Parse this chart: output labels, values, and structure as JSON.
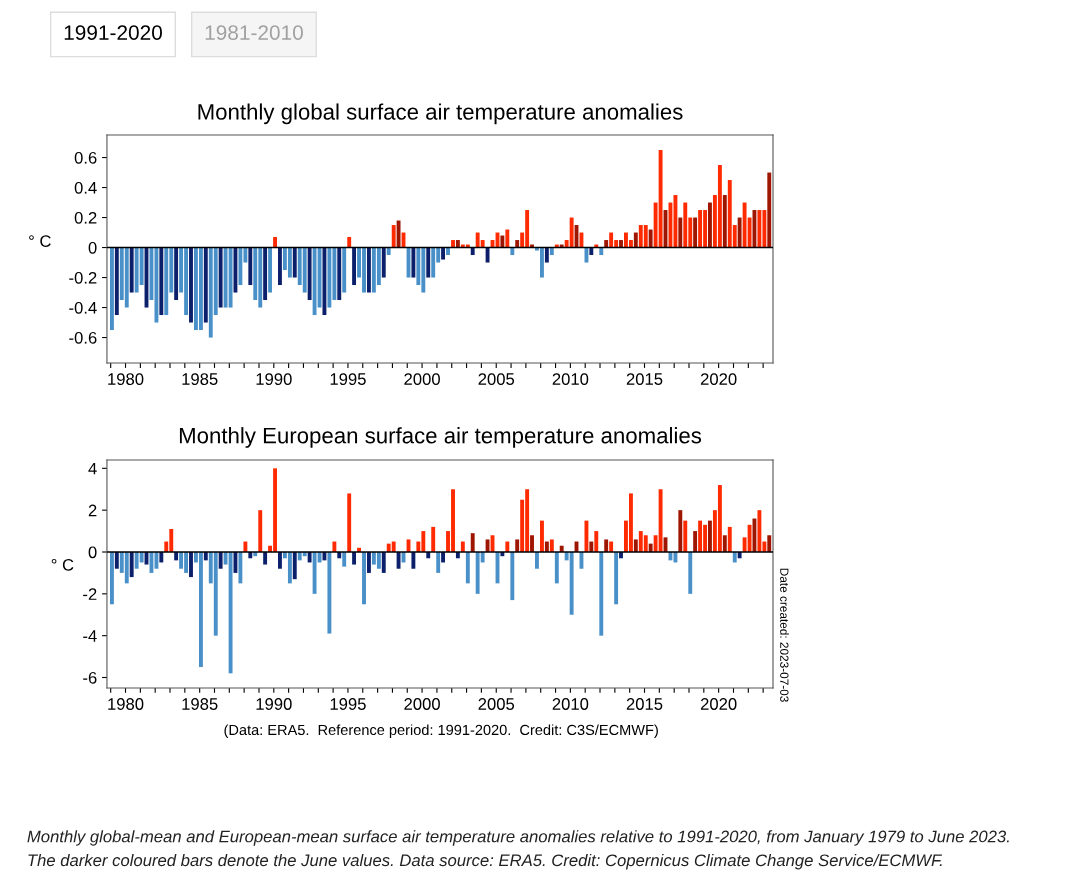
{
  "chart_data": [
    {
      "type": "bar",
      "title": "Monthly global surface air temperature anomalies",
      "ylabel": "° C",
      "annotations": [
        "1991-2020",
        "1981-2010"
      ],
      "x": [
        "1979-02",
        "1979-06",
        "1979-10",
        "1980-02",
        "1980-06",
        "1980-10",
        "1981-02",
        "1981-06",
        "1981-10",
        "1982-02",
        "1982-06",
        "1982-10",
        "1983-02",
        "1983-06",
        "1983-10",
        "1984-02",
        "1984-06",
        "1984-10",
        "1985-02",
        "1985-06",
        "1985-10",
        "1986-02",
        "1986-06",
        "1986-10",
        "1987-02",
        "1987-06",
        "1987-10",
        "1988-02",
        "1988-06",
        "1988-10",
        "1989-02",
        "1989-06",
        "1989-10",
        "1990-02",
        "1990-06",
        "1990-10",
        "1991-02",
        "1991-06",
        "1991-10",
        "1992-02",
        "1992-06",
        "1992-10",
        "1993-02",
        "1993-06",
        "1993-10",
        "1994-02",
        "1994-06",
        "1994-10",
        "1995-02",
        "1995-06",
        "1995-10",
        "1996-02",
        "1996-06",
        "1996-10",
        "1997-02",
        "1997-06",
        "1997-10",
        "1998-02",
        "1998-06",
        "1998-10",
        "1999-02",
        "1999-06",
        "1999-10",
        "2000-02",
        "2000-06",
        "2000-10",
        "2001-02",
        "2001-06",
        "2001-10",
        "2002-02",
        "2002-06",
        "2002-10",
        "2003-02",
        "2003-06",
        "2003-10",
        "2004-02",
        "2004-06",
        "2004-10",
        "2005-02",
        "2005-06",
        "2005-10",
        "2006-02",
        "2006-06",
        "2006-10",
        "2007-02",
        "2007-06",
        "2007-10",
        "2008-02",
        "2008-06",
        "2008-10",
        "2009-02",
        "2009-06",
        "2009-10",
        "2010-02",
        "2010-06",
        "2010-10",
        "2011-02",
        "2011-06",
        "2011-10",
        "2012-02",
        "2012-06",
        "2012-10",
        "2013-02",
        "2013-06",
        "2013-10",
        "2014-02",
        "2014-06",
        "2014-10",
        "2015-02",
        "2015-06",
        "2015-10",
        "2016-02",
        "2016-06",
        "2016-10",
        "2017-02",
        "2017-06",
        "2017-10",
        "2018-02",
        "2018-06",
        "2018-10",
        "2019-02",
        "2019-06",
        "2019-10",
        "2020-02",
        "2020-06",
        "2020-10",
        "2021-02",
        "2021-06",
        "2021-10",
        "2022-02",
        "2022-06",
        "2022-10",
        "2023-02",
        "2023-06"
      ],
      "values": [
        -0.55,
        -0.45,
        -0.35,
        -0.4,
        -0.3,
        -0.3,
        -0.25,
        -0.4,
        -0.35,
        -0.5,
        -0.45,
        -0.45,
        -0.3,
        -0.35,
        -0.3,
        -0.45,
        -0.5,
        -0.55,
        -0.55,
        -0.5,
        -0.6,
        -0.45,
        -0.4,
        -0.4,
        -0.4,
        -0.3,
        -0.25,
        -0.1,
        -0.25,
        -0.35,
        -0.4,
        -0.35,
        -0.3,
        0.07,
        -0.25,
        -0.15,
        -0.2,
        -0.2,
        -0.25,
        -0.3,
        -0.35,
        -0.45,
        -0.4,
        -0.45,
        -0.4,
        -0.35,
        -0.35,
        -0.3,
        0.07,
        -0.25,
        -0.2,
        -0.3,
        -0.3,
        -0.3,
        -0.25,
        -0.2,
        -0.05,
        0.15,
        0.18,
        0.1,
        -0.2,
        -0.2,
        -0.25,
        -0.3,
        -0.2,
        -0.2,
        -0.1,
        -0.08,
        -0.05,
        0.05,
        0.05,
        0.02,
        0.02,
        -0.05,
        0.1,
        0.05,
        -0.1,
        0.05,
        0.1,
        0.08,
        0.12,
        -0.05,
        0.05,
        0.1,
        0.25,
        0.02,
        -0.02,
        -0.2,
        -0.1,
        -0.05,
        0.02,
        0.02,
        0.05,
        0.2,
        0.15,
        0.1,
        -0.1,
        -0.05,
        0.02,
        -0.05,
        0.05,
        0.1,
        0.05,
        0.05,
        0.1,
        0.05,
        0.1,
        0.15,
        0.15,
        0.12,
        0.3,
        0.65,
        0.25,
        0.3,
        0.35,
        0.2,
        0.3,
        0.2,
        0.2,
        0.25,
        0.25,
        0.3,
        0.35,
        0.55,
        0.35,
        0.45,
        0.15,
        0.2,
        0.3,
        0.2,
        0.25,
        0.25,
        0.25,
        0.5
      ],
      "colors": [
        "#4a90c8",
        "#0b1f6b",
        "#4a90c8",
        "#4a90c8",
        "#0b1f6b",
        "#4a90c8",
        "#4a90c8",
        "#0b1f6b",
        "#4a90c8",
        "#4a90c8",
        "#0b1f6b",
        "#4a90c8",
        "#4a90c8",
        "#0b1f6b",
        "#4a90c8",
        "#4a90c8",
        "#0b1f6b",
        "#4a90c8",
        "#4a90c8",
        "#0b1f6b",
        "#4a90c8",
        "#4a90c8",
        "#0b1f6b",
        "#4a90c8",
        "#4a90c8",
        "#0b1f6b",
        "#4a90c8",
        "#4a90c8",
        "#0b1f6b",
        "#4a90c8",
        "#4a90c8",
        "#0b1f6b",
        "#4a90c8",
        "#ff2a00",
        "#0b1f6b",
        "#4a90c8",
        "#4a90c8",
        "#0b1f6b",
        "#4a90c8",
        "#4a90c8",
        "#0b1f6b",
        "#4a90c8",
        "#4a90c8",
        "#0b1f6b",
        "#4a90c8",
        "#4a90c8",
        "#0b1f6b",
        "#4a90c8",
        "#ff2a00",
        "#0b1f6b",
        "#4a90c8",
        "#4a90c8",
        "#0b1f6b",
        "#4a90c8",
        "#4a90c8",
        "#0b1f6b",
        "#4a90c8",
        "#ff2a00",
        "#9e1500",
        "#ff2a00",
        "#4a90c8",
        "#0b1f6b",
        "#4a90c8",
        "#4a90c8",
        "#0b1f6b",
        "#4a90c8",
        "#4a90c8",
        "#0b1f6b",
        "#4a90c8",
        "#ff2a00",
        "#9e1500",
        "#ff2a00",
        "#ff2a00",
        "#0b1f6b",
        "#ff2a00",
        "#ff2a00",
        "#0b1f6b",
        "#ff2a00",
        "#ff2a00",
        "#9e1500",
        "#ff2a00",
        "#4a90c8",
        "#9e1500",
        "#ff2a00",
        "#ff2a00",
        "#9e1500",
        "#4a90c8",
        "#4a90c8",
        "#0b1f6b",
        "#4a90c8",
        "#ff2a00",
        "#9e1500",
        "#ff2a00",
        "#ff2a00",
        "#9e1500",
        "#ff2a00",
        "#4a90c8",
        "#0b1f6b",
        "#ff2a00",
        "#4a90c8",
        "#9e1500",
        "#ff2a00",
        "#ff2a00",
        "#9e1500",
        "#ff2a00",
        "#ff2a00",
        "#9e1500",
        "#ff2a00",
        "#ff2a00",
        "#9e1500",
        "#ff2a00",
        "#ff2a00",
        "#9e1500",
        "#ff2a00",
        "#ff2a00",
        "#9e1500",
        "#ff2a00",
        "#ff2a00",
        "#9e1500",
        "#ff2a00",
        "#ff2a00",
        "#9e1500",
        "#ff2a00",
        "#ff2a00",
        "#9e1500",
        "#ff2a00",
        "#ff2a00",
        "#9e1500",
        "#ff2a00",
        "#ff2a00",
        "#9e1500",
        "#ff2a00",
        "#ff2a00",
        "#9e1500"
      ],
      "xlim": [
        "1978-10",
        "2023-09"
      ],
      "xticks": [
        {
          "value": "1979",
          "label": null
        },
        {
          "value": "1980",
          "label": "1980"
        },
        {
          "value": "1981",
          "label": null
        },
        {
          "value": "1982",
          "label": null
        },
        {
          "value": "1983",
          "label": null
        },
        {
          "value": "1984",
          "label": null
        },
        {
          "value": "1985",
          "label": "1985"
        },
        {
          "value": "1986",
          "label": null
        },
        {
          "value": "1987",
          "label": null
        },
        {
          "value": "1988",
          "label": null
        },
        {
          "value": "1989",
          "label": null
        },
        {
          "value": "1990",
          "label": "1990"
        },
        {
          "value": "1991",
          "label": null
        },
        {
          "value": "1992",
          "label": null
        },
        {
          "value": "1993",
          "label": null
        },
        {
          "value": "1994",
          "label": null
        },
        {
          "value": "1995",
          "label": "1995"
        },
        {
          "value": "1996",
          "label": null
        },
        {
          "value": "1997",
          "label": null
        },
        {
          "value": "1998",
          "label": null
        },
        {
          "value": "1999",
          "label": null
        },
        {
          "value": "2000",
          "label": "2000"
        },
        {
          "value": "2001",
          "label": null
        },
        {
          "value": "2002",
          "label": null
        },
        {
          "value": "2003",
          "label": null
        },
        {
          "value": "2004",
          "label": null
        },
        {
          "value": "2005",
          "label": "2005"
        },
        {
          "value": "2006",
          "label": null
        },
        {
          "value": "2007",
          "label": null
        },
        {
          "value": "2008",
          "label": null
        },
        {
          "value": "2009",
          "label": null
        },
        {
          "value": "2010",
          "label": "2010"
        },
        {
          "value": "2011",
          "label": null
        },
        {
          "value": "2012",
          "label": null
        },
        {
          "value": "2013",
          "label": null
        },
        {
          "value": "2014",
          "label": null
        },
        {
          "value": "2015",
          "label": "2015"
        },
        {
          "value": "2016",
          "label": null
        },
        {
          "value": "2017",
          "label": null
        },
        {
          "value": "2018",
          "label": null
        },
        {
          "value": "2019",
          "label": null
        },
        {
          "value": "2020",
          "label": "2020"
        },
        {
          "value": "2021",
          "label": null
        },
        {
          "value": "2022",
          "label": null
        },
        {
          "value": "2023",
          "label": null
        }
      ],
      "ylim": [
        -0.77,
        0.75
      ],
      "yticks": [
        {
          "value": -0.6,
          "label": "-0.6"
        },
        {
          "value": -0.4,
          "label": "-0.4"
        },
        {
          "value": -0.2,
          "label": "-0.2"
        },
        0,
        {
          "value": 0.2,
          "label": "0.2"
        },
        {
          "value": 0.4,
          "label": "0.4"
        },
        {
          "value": 0.6,
          "label": "0.6"
        }
      ],
      "ref_lines": [
        {
          "axis": "y",
          "value": 0,
          "color": "#000000"
        }
      ]
    },
    {
      "type": "bar",
      "title": "Monthly European surface air temperature anomalies",
      "ylabel": "° C",
      "annotations": [
        "(Data: ERA5.  Reference period: 1991-2020.  Credit: C3S/ECMWF)",
        "Date created: 2023-07-03",
        "Monthly global-mean and European-mean surface air temperature anomalies relative to 1991-2020, from January 1979 to June 2023.",
        "The darker coloured bars denote the June values. Data source: ERA5. Credit: Copernicus Climate Change Service/ECMWF."
      ],
      "x": [
        "1979-02",
        "1979-06",
        "1979-10",
        "1980-02",
        "1980-06",
        "1980-10",
        "1981-02",
        "1981-06",
        "1981-10",
        "1982-02",
        "1982-06",
        "1982-10",
        "1983-02",
        "1983-06",
        "1983-10",
        "1984-02",
        "1984-06",
        "1984-10",
        "1985-02",
        "1985-06",
        "1985-10",
        "1986-02",
        "1986-06",
        "1986-10",
        "1987-02",
        "1987-06",
        "1987-10",
        "1988-02",
        "1988-06",
        "1988-10",
        "1989-02",
        "1989-06",
        "1989-10",
        "1990-02",
        "1990-06",
        "1990-10",
        "1991-02",
        "1991-06",
        "1991-10",
        "1992-02",
        "1992-06",
        "1992-10",
        "1993-02",
        "1993-06",
        "1993-10",
        "1994-02",
        "1994-06",
        "1994-10",
        "1995-02",
        "1995-06",
        "1995-10",
        "1996-02",
        "1996-06",
        "1996-10",
        "1997-02",
        "1997-06",
        "1997-10",
        "1998-02",
        "1998-06",
        "1998-10",
        "1999-02",
        "1999-06",
        "1999-10",
        "2000-02",
        "2000-06",
        "2000-10",
        "2001-02",
        "2001-06",
        "2001-10",
        "2002-02",
        "2002-06",
        "2002-10",
        "2003-02",
        "2003-06",
        "2003-10",
        "2004-02",
        "2004-06",
        "2004-10",
        "2005-02",
        "2005-06",
        "2005-10",
        "2006-02",
        "2006-06",
        "2006-10",
        "2007-02",
        "2007-06",
        "2007-10",
        "2008-02",
        "2008-06",
        "2008-10",
        "2009-02",
        "2009-06",
        "2009-10",
        "2010-02",
        "2010-06",
        "2010-10",
        "2011-02",
        "2011-06",
        "2011-10",
        "2012-02",
        "2012-06",
        "2012-10",
        "2013-02",
        "2013-06",
        "2013-10",
        "2014-02",
        "2014-06",
        "2014-10",
        "2015-02",
        "2015-06",
        "2015-10",
        "2016-02",
        "2016-06",
        "2016-10",
        "2017-02",
        "2017-06",
        "2017-10",
        "2018-02",
        "2018-06",
        "2018-10",
        "2019-02",
        "2019-06",
        "2019-10",
        "2020-02",
        "2020-06",
        "2020-10",
        "2021-02",
        "2021-06",
        "2021-10",
        "2022-02",
        "2022-06",
        "2022-10",
        "2023-02",
        "2023-06"
      ],
      "values": [
        -2.5,
        -0.8,
        -1.0,
        -1.5,
        -1.2,
        -0.8,
        -0.5,
        -0.6,
        -1.0,
        -0.8,
        -0.5,
        0.5,
        1.1,
        -0.4,
        -0.8,
        -1.0,
        -1.2,
        -0.5,
        -5.5,
        -0.4,
        -1.5,
        -4.0,
        -0.8,
        -0.6,
        -5.8,
        -1.0,
        -1.5,
        0.5,
        -0.3,
        -0.2,
        2.0,
        -0.6,
        0.3,
        4.0,
        -0.8,
        -0.3,
        -1.5,
        -1.3,
        -0.4,
        -0.2,
        -0.5,
        -2.0,
        -0.5,
        -0.4,
        -3.9,
        0.5,
        -0.3,
        -0.7,
        2.8,
        -0.6,
        0.2,
        -2.5,
        -1.0,
        -0.6,
        -0.8,
        -1.0,
        0.4,
        0.5,
        -0.8,
        -0.5,
        0.6,
        -0.8,
        0.5,
        1.0,
        -0.3,
        1.2,
        -1.0,
        -0.5,
        1.0,
        3.0,
        -0.3,
        0.5,
        -1.5,
        0.9,
        -2.0,
        -0.5,
        0.6,
        0.8,
        -1.5,
        -0.2,
        0.5,
        -2.3,
        0.6,
        2.5,
        3.0,
        0.8,
        -0.8,
        1.5,
        0.5,
        0.6,
        -1.5,
        0.3,
        -0.4,
        -3.0,
        0.5,
        -0.8,
        1.5,
        0.5,
        1.0,
        -4.0,
        0.6,
        0.5,
        -2.5,
        -0.3,
        1.5,
        2.8,
        0.6,
        1.0,
        0.8,
        0.4,
        0.8,
        3.0,
        0.7,
        -0.4,
        -0.5,
        2.0,
        1.5,
        -2.0,
        1.0,
        1.5,
        1.3,
        1.5,
        2.0,
        3.2,
        0.8,
        1.2,
        -0.5,
        -0.3,
        0.7,
        1.3,
        1.6,
        2.0,
        0.5,
        0.8
      ],
      "colors": [
        "#4a90c8",
        "#0b1f6b",
        "#4a90c8",
        "#4a90c8",
        "#0b1f6b",
        "#4a90c8",
        "#4a90c8",
        "#0b1f6b",
        "#4a90c8",
        "#4a90c8",
        "#0b1f6b",
        "#ff2a00",
        "#ff2a00",
        "#0b1f6b",
        "#4a90c8",
        "#4a90c8",
        "#0b1f6b",
        "#4a90c8",
        "#4a90c8",
        "#0b1f6b",
        "#4a90c8",
        "#4a90c8",
        "#0b1f6b",
        "#4a90c8",
        "#4a90c8",
        "#0b1f6b",
        "#4a90c8",
        "#ff2a00",
        "#0b1f6b",
        "#4a90c8",
        "#ff2a00",
        "#0b1f6b",
        "#ff2a00",
        "#ff2a00",
        "#0b1f6b",
        "#4a90c8",
        "#4a90c8",
        "#0b1f6b",
        "#4a90c8",
        "#4a90c8",
        "#0b1f6b",
        "#4a90c8",
        "#4a90c8",
        "#0b1f6b",
        "#4a90c8",
        "#ff2a00",
        "#0b1f6b",
        "#4a90c8",
        "#ff2a00",
        "#0b1f6b",
        "#ff2a00",
        "#4a90c8",
        "#0b1f6b",
        "#4a90c8",
        "#4a90c8",
        "#0b1f6b",
        "#ff2a00",
        "#ff2a00",
        "#0b1f6b",
        "#4a90c8",
        "#ff2a00",
        "#0b1f6b",
        "#ff2a00",
        "#ff2a00",
        "#0b1f6b",
        "#ff2a00",
        "#4a90c8",
        "#0b1f6b",
        "#ff2a00",
        "#ff2a00",
        "#0b1f6b",
        "#ff2a00",
        "#4a90c8",
        "#9e1500",
        "#4a90c8",
        "#4a90c8",
        "#9e1500",
        "#ff2a00",
        "#4a90c8",
        "#0b1f6b",
        "#ff2a00",
        "#4a90c8",
        "#9e1500",
        "#ff2a00",
        "#ff2a00",
        "#9e1500",
        "#4a90c8",
        "#ff2a00",
        "#9e1500",
        "#ff2a00",
        "#4a90c8",
        "#9e1500",
        "#4a90c8",
        "#4a90c8",
        "#9e1500",
        "#4a90c8",
        "#ff2a00",
        "#9e1500",
        "#ff2a00",
        "#4a90c8",
        "#9e1500",
        "#ff2a00",
        "#4a90c8",
        "#0b1f6b",
        "#ff2a00",
        "#ff2a00",
        "#9e1500",
        "#ff2a00",
        "#ff2a00",
        "#9e1500",
        "#ff2a00",
        "#ff2a00",
        "#9e1500",
        "#4a90c8",
        "#4a90c8",
        "#9e1500",
        "#ff2a00",
        "#4a90c8",
        "#9e1500",
        "#ff2a00",
        "#ff2a00",
        "#9e1500",
        "#ff2a00",
        "#ff2a00",
        "#9e1500",
        "#ff2a00",
        "#4a90c8",
        "#0b1f6b",
        "#ff2a00",
        "#ff2a00",
        "#9e1500",
        "#ff2a00",
        "#ff2a00",
        "#9e1500"
      ],
      "xlim": [
        "1978-10",
        "2023-09"
      ],
      "xticks": [
        {
          "value": "1979",
          "label": null
        },
        {
          "value": "1980",
          "label": "1980"
        },
        {
          "value": "1981",
          "label": null
        },
        {
          "value": "1982",
          "label": null
        },
        {
          "value": "1983",
          "label": null
        },
        {
          "value": "1984",
          "label": null
        },
        {
          "value": "1985",
          "label": "1985"
        },
        {
          "value": "1986",
          "label": null
        },
        {
          "value": "1987",
          "label": null
        },
        {
          "value": "1988",
          "label": null
        },
        {
          "value": "1989",
          "label": null
        },
        {
          "value": "1990",
          "label": "1990"
        },
        {
          "value": "1991",
          "label": null
        },
        {
          "value": "1992",
          "label": null
        },
        {
          "value": "1993",
          "label": null
        },
        {
          "value": "1994",
          "label": null
        },
        {
          "value": "1995",
          "label": "1995"
        },
        {
          "value": "1996",
          "label": null
        },
        {
          "value": "1997",
          "label": null
        },
        {
          "value": "1998",
          "label": null
        },
        {
          "value": "1999",
          "label": null
        },
        {
          "value": "2000",
          "label": "2000"
        },
        {
          "value": "2001",
          "label": null
        },
        {
          "value": "2002",
          "label": null
        },
        {
          "value": "2003",
          "label": null
        },
        {
          "value": "2004",
          "label": null
        },
        {
          "value": "2005",
          "label": "2005"
        },
        {
          "value": "2006",
          "label": null
        },
        {
          "value": "2007",
          "label": null
        },
        {
          "value": "2008",
          "label": null
        },
        {
          "value": "2009",
          "label": null
        },
        {
          "value": "2010",
          "label": "2010"
        },
        {
          "value": "2011",
          "label": null
        },
        {
          "value": "2012",
          "label": null
        },
        {
          "value": "2013",
          "label": null
        },
        {
          "value": "2014",
          "label": null
        },
        {
          "value": "2015",
          "label": "2015"
        },
        {
          "value": "2016",
          "label": null
        },
        {
          "value": "2017",
          "label": null
        },
        {
          "value": "2018",
          "label": null
        },
        {
          "value": "2019",
          "label": null
        },
        {
          "value": "2020",
          "label": "2020"
        },
        {
          "value": "2021",
          "label": null
        },
        {
          "value": "2022",
          "label": null
        },
        {
          "value": "2023",
          "label": null
        }
      ],
      "ylim": [
        -6.5,
        4.4
      ],
      "yticks": [
        {
          "value": -6,
          "label": "-6"
        },
        {
          "value": -4,
          "label": "-4"
        },
        {
          "value": -2,
          "label": "-2"
        },
        0,
        2,
        4
      ],
      "ref_lines": [
        {
          "axis": "y",
          "value": 0,
          "color": "#000000"
        }
      ]
    }
  ]
}
